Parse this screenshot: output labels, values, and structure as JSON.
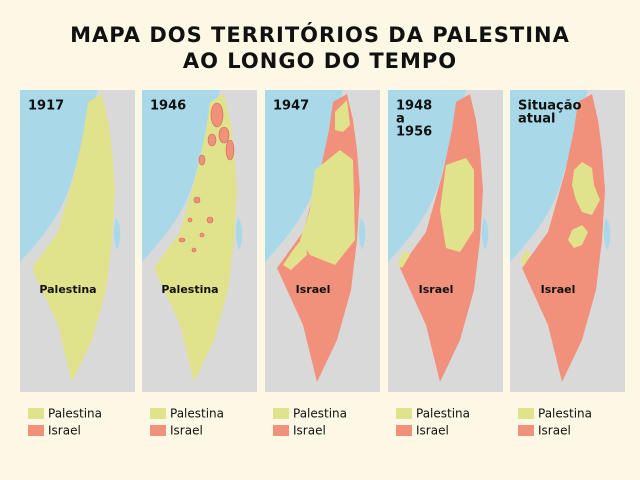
{
  "title": [
    "MAPA DOS TERRITÓRIOS DA PALESTINA",
    "AO LONGO DO TEMPO"
  ],
  "panels": [
    {
      "period": [
        "1917"
      ],
      "region_label": "Palestina",
      "legend": [
        "Palestina",
        "Israel"
      ]
    },
    {
      "period": [
        "1946"
      ],
      "region_label": "Palestina",
      "legend": [
        "Palestina",
        "Israel"
      ]
    },
    {
      "period": [
        "1947"
      ],
      "region_label": "Israel",
      "legend": [
        "Palestina",
        "Israel"
      ]
    },
    {
      "period": [
        "1948",
        "a",
        "1956"
      ],
      "region_label": "Israel",
      "legend": [
        "Palestina",
        "Israel"
      ]
    },
    {
      "period": [
        "Situação",
        "atual"
      ],
      "region_label": "Israel",
      "legend": [
        "Palestina",
        "Israel"
      ]
    }
  ]
}
